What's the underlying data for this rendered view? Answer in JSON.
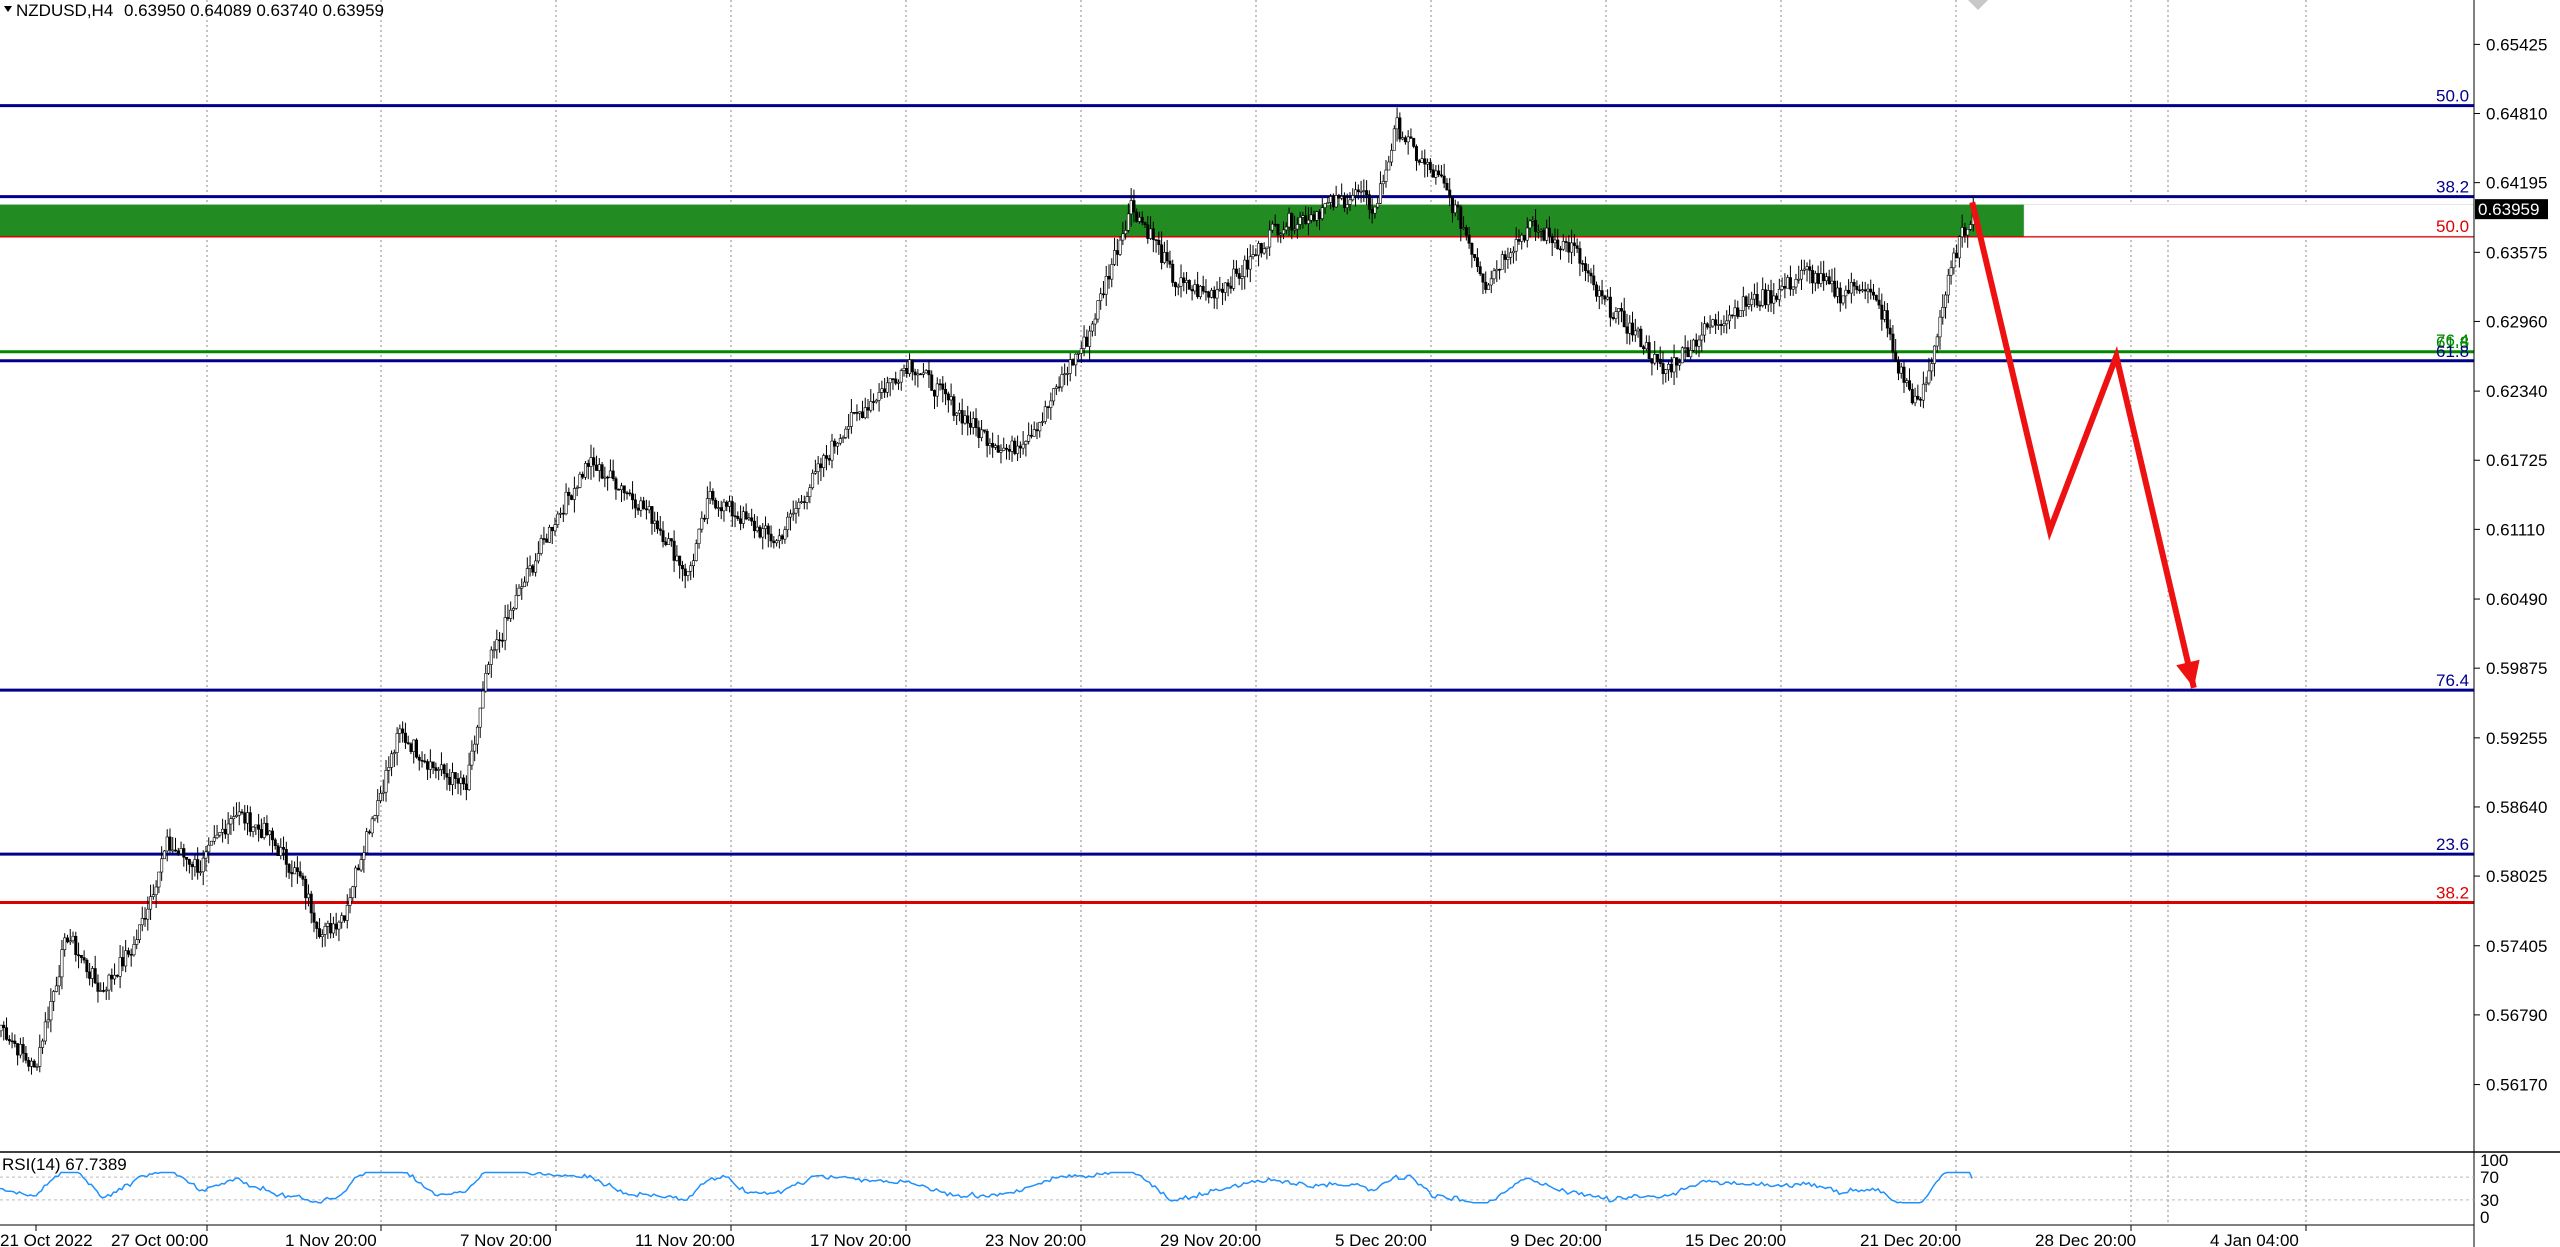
{
  "header": {
    "symbol": "NZDUSD,H4",
    "ohlc": "0.63950 0.64089 0.63740 0.63959"
  },
  "price_badge": "0.63959",
  "rsi": {
    "label": "RSI(14) 67.7389",
    "ticks": [
      "100",
      "70",
      "30",
      "0"
    ],
    "overbought": 70,
    "oversold": 30,
    "last_value": 67.7389
  },
  "colors": {
    "bull": "#ffffff",
    "bear": "#000000",
    "blue_level": "#00008b",
    "red_level": "#dd0000",
    "green_level": "#008800",
    "zone": "#228b22",
    "arrow": "#ee1111",
    "rsi_line": "#1e90ff",
    "grid": "#8a8a8a"
  },
  "chart_data": {
    "type": "candlestick",
    "timeframe": "H4",
    "ylim": [
      0.5557,
      0.6582
    ],
    "y_ticks": [
      "0.65425",
      "0.64810",
      "0.64195",
      "0.63575",
      "0.62960",
      "0.62340",
      "0.61725",
      "0.61110",
      "0.60490",
      "0.59875",
      "0.59255",
      "0.58640",
      "0.58025",
      "0.57405",
      "0.56790",
      "0.56170"
    ],
    "x_ticks": [
      "21 Oct 2022",
      "27 Oct 00:00",
      "1 Nov 20:00",
      "7 Nov 20:00",
      "11 Nov 20:00",
      "17 Nov 20:00",
      "23 Nov 20:00",
      "29 Nov 20:00",
      "5 Dec 20:00",
      "9 Dec 20:00",
      "15 Dec 20:00",
      "21 Dec 20:00",
      "28 Dec 20:00",
      "4 Jan 04:00"
    ],
    "close_path": [
      [
        0,
        0.567
      ],
      [
        12,
        0.563
      ],
      [
        24,
        0.575
      ],
      [
        36,
        0.57
      ],
      [
        48,
        0.574
      ],
      [
        60,
        0.583
      ],
      [
        72,
        0.581
      ],
      [
        84,
        0.586
      ],
      [
        96,
        0.584
      ],
      [
        108,
        0.58
      ],
      [
        116,
        0.575
      ],
      [
        124,
        0.577
      ],
      [
        132,
        0.584
      ],
      [
        144,
        0.593
      ],
      [
        156,
        0.59
      ],
      [
        168,
        0.588
      ],
      [
        176,
        0.599
      ],
      [
        188,
        0.606
      ],
      [
        200,
        0.612
      ],
      [
        212,
        0.617
      ],
      [
        224,
        0.615
      ],
      [
        236,
        0.612
      ],
      [
        248,
        0.607
      ],
      [
        256,
        0.614
      ],
      [
        268,
        0.612
      ],
      [
        280,
        0.61
      ],
      [
        292,
        0.615
      ],
      [
        304,
        0.62
      ],
      [
        316,
        0.623
      ],
      [
        328,
        0.626
      ],
      [
        340,
        0.623
      ],
      [
        352,
        0.62
      ],
      [
        364,
        0.618
      ],
      [
        376,
        0.621
      ],
      [
        384,
        0.625
      ],
      [
        392,
        0.628
      ],
      [
        400,
        0.634
      ],
      [
        408,
        0.64
      ],
      [
        416,
        0.637
      ],
      [
        424,
        0.633
      ],
      [
        436,
        0.632
      ],
      [
        448,
        0.634
      ],
      [
        460,
        0.638
      ],
      [
        472,
        0.639
      ],
      [
        480,
        0.64
      ],
      [
        490,
        0.641
      ],
      [
        496,
        0.6395
      ],
      [
        504,
        0.647
      ],
      [
        512,
        0.644
      ],
      [
        520,
        0.642
      ],
      [
        528,
        0.638
      ],
      [
        536,
        0.633
      ],
      [
        544,
        0.636
      ],
      [
        552,
        0.638
      ],
      [
        560,
        0.637
      ],
      [
        568,
        0.636
      ],
      [
        576,
        0.632
      ],
      [
        584,
        0.63
      ],
      [
        592,
        0.628
      ],
      [
        600,
        0.625
      ],
      [
        608,
        0.627
      ],
      [
        616,
        0.629
      ],
      [
        628,
        0.631
      ],
      [
        640,
        0.632
      ],
      [
        652,
        0.634
      ],
      [
        664,
        0.632
      ],
      [
        672,
        0.633
      ],
      [
        680,
        0.63
      ],
      [
        684,
        0.626
      ],
      [
        688,
        0.624
      ],
      [
        692,
        0.622
      ],
      [
        696,
        0.625
      ],
      [
        700,
        0.63
      ],
      [
        706,
        0.636
      ],
      [
        712,
        0.6396
      ]
    ],
    "y_tick_values": [
      0.65425,
      0.6481,
      0.64195,
      0.63575,
      0.6296,
      0.6234,
      0.61725,
      0.6111,
      0.6049,
      0.59875,
      0.59255,
      0.5864,
      0.58025,
      0.57405,
      0.5679,
      0.5617
    ],
    "current_price": 0.63959,
    "fib_levels": [
      {
        "label": "50.0",
        "price": 0.6488,
        "color": "blue"
      },
      {
        "label": "38.2",
        "price": 0.6407,
        "color": "blue"
      },
      {
        "label": "50.0",
        "price": 0.6372,
        "color": "red"
      },
      {
        "label": "61.8",
        "price": 0.6269,
        "color": "green"
      },
      {
        "label": "61.8",
        "price": 0.6261,
        "color": "blue"
      },
      {
        "label": "76.4",
        "price": 0.5968,
        "color": "blue"
      },
      {
        "label": "23.6",
        "price": 0.5822,
        "color": "blue"
      },
      {
        "label": "38.2",
        "price": 0.5779,
        "color": "red"
      }
    ],
    "green_label_partial": "76.4",
    "zone": {
      "top": 0.64,
      "bottom": 0.6372
    },
    "forecast_path": [
      {
        "bar": 712,
        "price": 0.6402
      },
      {
        "bar": 740,
        "price": 0.611
      },
      {
        "bar": 764,
        "price": 0.6265
      },
      {
        "bar": 792,
        "price": 0.597
      }
    ]
  }
}
